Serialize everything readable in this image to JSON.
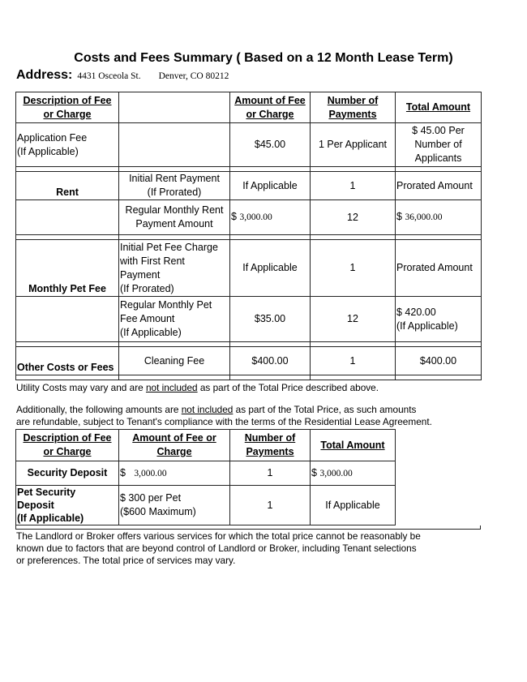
{
  "title": "Costs and Fees Summary ( Based on a 12 Month Lease Term)",
  "address": {
    "label": "Address:",
    "street": "4431 Osceola St.",
    "city": "Denver, CO 80212"
  },
  "table1": {
    "headers": [
      "Description of Fee\nor Charge",
      "",
      "Amount of Fee\nor Charge",
      "Number of\nPayments",
      "Total Amount"
    ],
    "app_fee": {
      "desc": "Application Fee\n      (If Applicable)",
      "amount": "$45.00",
      "payments": "1 Per Applicant",
      "total": "$ 45.00 Per\nNumber  of\nApplicants"
    },
    "rent_initial": {
      "desc": "Rent",
      "sub": "Initial Rent Payment\n(If Prorated)",
      "amount": "If Applicable",
      "payments": "1",
      "total": "Prorated Amount"
    },
    "rent_regular": {
      "sub": "Regular Monthly Rent\nPayment Amount",
      "amount_sign": "$",
      "amount": "3,000.00",
      "payments": "12",
      "total_sign": "$",
      "total": "36,000.00"
    },
    "pet_initial": {
      "desc": "Monthly Pet Fee",
      "sub": "Initial Pet Fee Charge\nwith First Rent\n    Payment\n        (If Prorated)",
      "amount": "If Applicable",
      "payments": "1",
      "total": "Prorated Amount"
    },
    "pet_regular": {
      "sub": "Regular Monthly Pet\n   Fee Amount\n        (If  Applicable)",
      "amount": "$35.00",
      "payments": "12",
      "total": "$ 420.00\n     (If Applicable)"
    },
    "other": {
      "desc": "Other Costs or Fees",
      "sub": "Cleaning Fee",
      "amount": "$400.00",
      "payments": "1",
      "total": "$400.00"
    }
  },
  "utility_note": {
    "before": "Utility Costs may vary and are ",
    "underlined": "not included",
    "after": " as part of the Total Price described above."
  },
  "additional_note": {
    "before": "Additionally, the following amounts are ",
    "underlined": "not included",
    "after": " as part of the Total Price, as such amounts\nare refundable, subject to Tenant's compliance with the terms of the Residential Lease Agreement."
  },
  "table2": {
    "headers": [
      "Description of Fee\nor Charge",
      "Amount of Fee or\nCharge",
      "Number of\nPayments",
      "Total Amount"
    ],
    "security": {
      "desc": "Security Deposit",
      "amount_sign": "$",
      "amount": "3,000.00",
      "payments": "1",
      "total_sign": "$",
      "total": "3,000.00"
    },
    "pet_deposit": {
      "desc": "Pet Security\nDeposit\n     (If Applicable)",
      "amount": "$ 300 per Pet\n   ($600 Maximum)",
      "payments": "1",
      "total": "If Applicable"
    }
  },
  "services_note": "The Landlord or Broker offers various services for which the total price cannot be reasonably be\n known due to factors that are beyond control of Landlord or Broker, including Tenant selections\nor preferences. The total price of services may vary."
}
